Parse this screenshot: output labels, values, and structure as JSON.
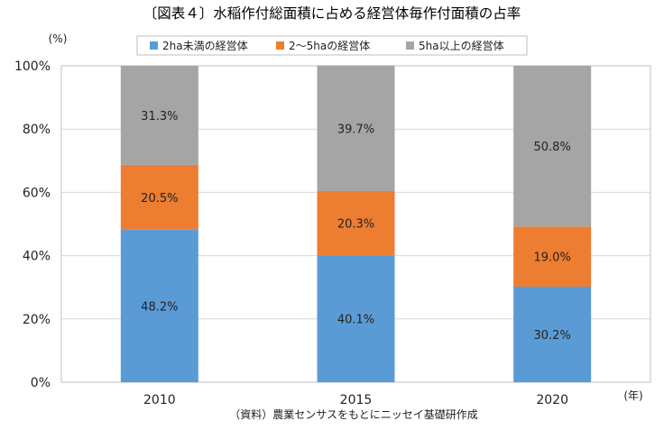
{
  "chart_data": {
    "type": "bar",
    "stacked": true,
    "percent": true,
    "title": "〔図表４〕水稲作付総面積に占める経営体毎作付面積の占率",
    "ylabel": "(%)",
    "xlabel": "(年)",
    "source": "（資料）農業センサスをもとにニッセイ基礎研作成",
    "categories": [
      "2010",
      "2015",
      "2020"
    ],
    "ylim": [
      0,
      100
    ],
    "yticks": [
      0,
      20,
      40,
      60,
      80,
      100
    ],
    "ytick_labels": [
      "0%",
      "20%",
      "40%",
      "60%",
      "80%",
      "100%"
    ],
    "grid": true,
    "legend_position": "top",
    "series": [
      {
        "name": "2ha未満の経営体",
        "values": [
          48.2,
          40.1,
          30.2
        ],
        "labels": [
          "48.2%",
          "40.1%",
          "30.2%"
        ],
        "color": "#5b9bd5"
      },
      {
        "name": "2～5haの経営体",
        "values": [
          20.5,
          20.3,
          19.0
        ],
        "labels": [
          "20.5%",
          "20.3%",
          "19.0%"
        ],
        "color": "#ed7d31"
      },
      {
        "name": "5ha以上の経営体",
        "values": [
          31.3,
          39.7,
          50.8
        ],
        "labels": [
          "31.3%",
          "39.7%",
          "50.8%"
        ],
        "color": "#a5a5a5"
      }
    ]
  }
}
